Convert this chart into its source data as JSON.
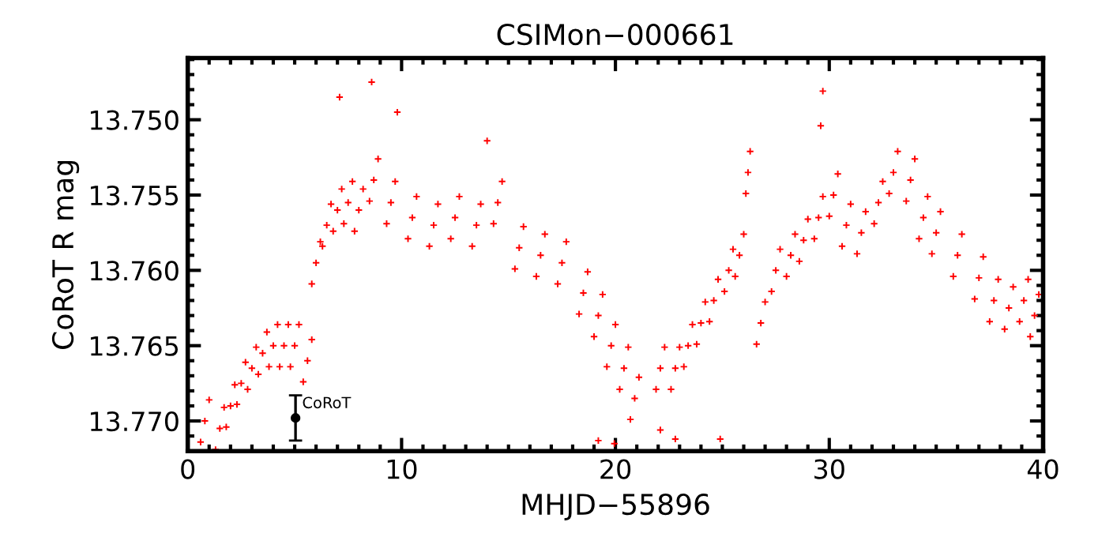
{
  "chart_data": {
    "type": "scatter",
    "title": "CSIMon−000661",
    "xlabel": "MHJD−55896",
    "ylabel": "CoRoT R mag",
    "xlim": [
      0,
      40
    ],
    "xticks": [
      0,
      10,
      20,
      30,
      40
    ],
    "ylim": [
      13.772,
      13.7459
    ],
    "yticks": [
      {
        "value": 13.75,
        "label": "13.750"
      },
      {
        "value": 13.755,
        "label": "13.755"
      },
      {
        "value": 13.76,
        "label": "13.760"
      },
      {
        "value": 13.765,
        "label": "13.765"
      },
      {
        "value": 13.77,
        "label": "13.770"
      }
    ],
    "grid": false,
    "legend": false,
    "series": [
      {
        "color": "#ff0000",
        "marker": "cross",
        "x": [
          0.6,
          0.8,
          1.0,
          1.3,
          1.5,
          1.7,
          1.8,
          2.0,
          2.2,
          2.3,
          2.5,
          2.7,
          2.8,
          3.0,
          3.2,
          3.3,
          3.5,
          3.7,
          3.8,
          4.0,
          4.2,
          4.3,
          4.5,
          4.7,
          4.8,
          5.0,
          5.2,
          5.4,
          5.6,
          5.8,
          5.8,
          6.0,
          6.2,
          6.3,
          6.5,
          6.7,
          6.8,
          7.0,
          7.2,
          7.3,
          7.5,
          7.7,
          7.8,
          8.0,
          8.2,
          8.5,
          8.7,
          8.9,
          9.3,
          9.5,
          9.7,
          10.3,
          10.5,
          10.7,
          11.3,
          11.5,
          11.7,
          12.3,
          12.5,
          12.7,
          13.3,
          13.5,
          13.7,
          14.3,
          14.5,
          14.7,
          15.3,
          15.5,
          15.7,
          16.3,
          16.5,
          16.7,
          17.3,
          17.5,
          17.7,
          18.3,
          18.5,
          18.7,
          19.0,
          19.2,
          19.4,
          19.6,
          19.8,
          20.0,
          20.2,
          20.4,
          20.6,
          20.7,
          20.9,
          21.1,
          21.9,
          22.1,
          22.3,
          22.6,
          22.8,
          23.0,
          23.2,
          23.4,
          23.6,
          23.8,
          24.0,
          24.2,
          24.4,
          24.6,
          24.8,
          25.1,
          25.3,
          25.5,
          25.6,
          25.8,
          26.0,
          26.1,
          26.2,
          26.3,
          26.6,
          26.8,
          27.0,
          27.3,
          27.5,
          27.7,
          28.0,
          28.2,
          28.4,
          28.6,
          28.8,
          29.0,
          29.3,
          29.5,
          29.7,
          30.0,
          30.2,
          30.4,
          30.6,
          30.8,
          31.0,
          31.3,
          31.5,
          31.7,
          32.1,
          32.3,
          32.5,
          32.8,
          33.0,
          33.2,
          33.6,
          33.8,
          34.0,
          34.2,
          34.4,
          34.6,
          34.8,
          35.0,
          35.2,
          35.8,
          36.0,
          36.2,
          36.8,
          37.0,
          37.2,
          37.5,
          37.7,
          37.9,
          38.2,
          38.4,
          38.6,
          38.9,
          39.1,
          39.3,
          39.4,
          39.6,
          39.8,
          7.1,
          8.6,
          9.8,
          29.7,
          29.6,
          19.2,
          19.95,
          22.1,
          22.8,
          24.9,
          14.0
        ],
        "values": [
          13.7714,
          13.77,
          13.7686,
          13.7719,
          13.7705,
          13.7691,
          13.7704,
          13.769,
          13.7676,
          13.7689,
          13.7675,
          13.7661,
          13.7679,
          13.7665,
          13.7651,
          13.7669,
          13.7655,
          13.7641,
          13.7664,
          13.765,
          13.7636,
          13.7664,
          13.765,
          13.7636,
          13.7664,
          13.765,
          13.7636,
          13.7674,
          13.766,
          13.7646,
          13.7609,
          13.7595,
          13.7581,
          13.7584,
          13.757,
          13.7556,
          13.7574,
          13.756,
          13.7546,
          13.7569,
          13.7555,
          13.7541,
          13.7574,
          13.756,
          13.7546,
          13.7554,
          13.754,
          13.7526,
          13.7569,
          13.7555,
          13.7541,
          13.7579,
          13.7565,
          13.7551,
          13.7584,
          13.757,
          13.7556,
          13.7579,
          13.7565,
          13.7551,
          13.7584,
          13.757,
          13.7556,
          13.7569,
          13.7555,
          13.7541,
          13.7599,
          13.7585,
          13.7571,
          13.7604,
          13.759,
          13.7576,
          13.7609,
          13.7595,
          13.7581,
          13.7629,
          13.7615,
          13.7601,
          13.7644,
          13.763,
          13.7616,
          13.7664,
          13.765,
          13.7636,
          13.7679,
          13.7665,
          13.7651,
          13.7699,
          13.7685,
          13.7671,
          13.7679,
          13.7665,
          13.7651,
          13.7679,
          13.7665,
          13.7651,
          13.7664,
          13.765,
          13.7636,
          13.7649,
          13.7635,
          13.7621,
          13.7634,
          13.762,
          13.7606,
          13.7614,
          13.76,
          13.7586,
          13.7604,
          13.759,
          13.7576,
          13.7549,
          13.7535,
          13.7521,
          13.7649,
          13.7635,
          13.7621,
          13.7614,
          13.76,
          13.7586,
          13.7604,
          13.759,
          13.7576,
          13.7594,
          13.758,
          13.7566,
          13.7579,
          13.7565,
          13.7551,
          13.7564,
          13.755,
          13.7536,
          13.7584,
          13.757,
          13.7556,
          13.7589,
          13.7575,
          13.7561,
          13.7569,
          13.7555,
          13.7541,
          13.7549,
          13.7535,
          13.7521,
          13.7554,
          13.754,
          13.7526,
          13.7579,
          13.7565,
          13.7551,
          13.7589,
          13.7575,
          13.7561,
          13.7604,
          13.759,
          13.7576,
          13.7619,
          13.7605,
          13.7591,
          13.7634,
          13.762,
          13.7606,
          13.7639,
          13.7625,
          13.7611,
          13.7634,
          13.762,
          13.7606,
          13.7644,
          13.763,
          13.7616,
          13.7485,
          13.7475,
          13.7495,
          13.7481,
          13.7504,
          13.7713,
          13.7715,
          13.7706,
          13.7712,
          13.7712,
          13.7514
        ]
      },
      {
        "name": "CoRoT",
        "color": "#000000",
        "marker": "circle",
        "x": [
          5.04
        ],
        "values": [
          13.7698
        ],
        "errors": [
          0.0015
        ]
      }
    ]
  }
}
